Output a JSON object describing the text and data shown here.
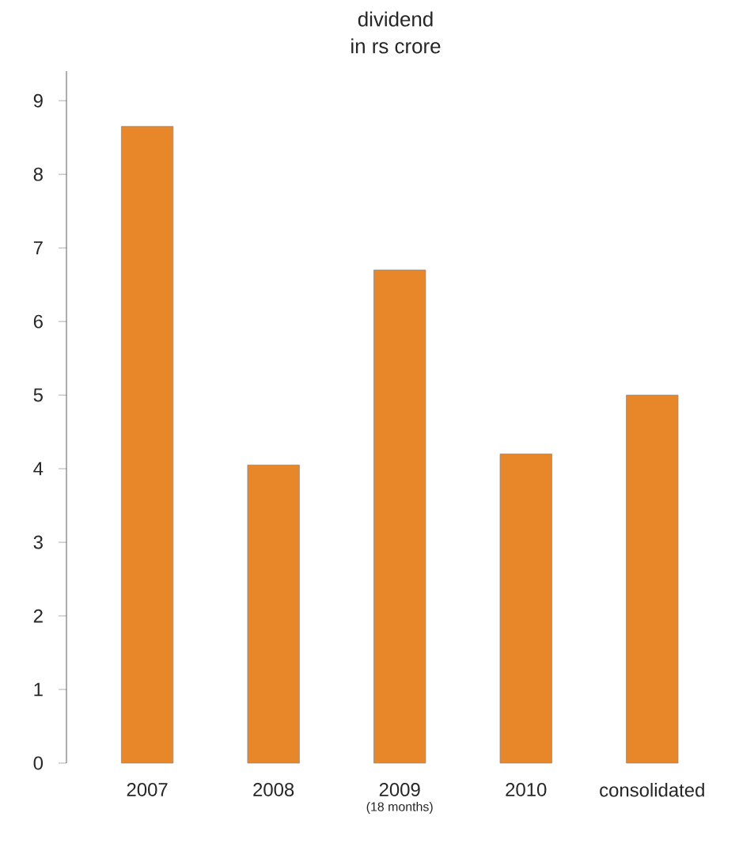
{
  "chart_data": {
    "type": "bar",
    "title": "dividend",
    "subtitle": "in rs crore",
    "categories": [
      "2007",
      "2008",
      "2009",
      "2010",
      "consolidated"
    ],
    "values": [
      8.65,
      4.05,
      6.7,
      4.2,
      5.0
    ],
    "color": "#e8862a",
    "ylim": [
      0,
      9.4
    ],
    "yticks": [
      0,
      1,
      2,
      3,
      4,
      5,
      6,
      7,
      8,
      9
    ],
    "annotations": [
      "(18 months)"
    ]
  }
}
